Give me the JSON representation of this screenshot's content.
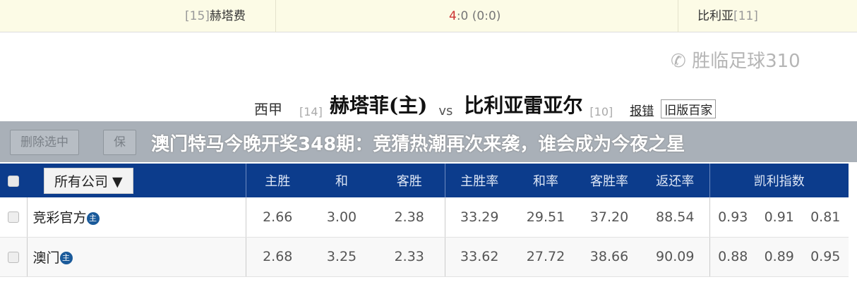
{
  "previous_match": {
    "home_rank": "[15]",
    "home": "赫塔费",
    "score_home": "4",
    "score_rest": ":0 (0:0)",
    "away": "比利亚",
    "away_rank": "[11]"
  },
  "match": {
    "league": "西甲",
    "home_rank": "[14]",
    "home": "赫塔菲(主)",
    "vs": "vs",
    "away": "比利亚雷亚尔",
    "away_rank": "[10]",
    "report_link": "报错",
    "old_version_button": "旧版百家"
  },
  "toolbar": {
    "delete_selected": "删除选中",
    "save": "保"
  },
  "banner": "澳门特马今晚开奖348期：竞猜热潮再次来袭，谁会成为今夜之星",
  "table": {
    "company_select": "所有公司 ▼",
    "headers": [
      "主胜",
      "和",
      "客胜",
      "主胜率",
      "和率",
      "客胜率",
      "返还率",
      "凯利指数"
    ],
    "rows": [
      {
        "company": "竞彩官方",
        "badge": "主",
        "odds": [
          "2.66",
          "3.00",
          "2.38"
        ],
        "rates": [
          "33.29",
          "29.51",
          "37.20",
          "88.54"
        ],
        "kelly": [
          "0.93",
          "0.91",
          "0.81"
        ]
      },
      {
        "company": "澳门",
        "badge": "主",
        "odds": [
          "2.68",
          "3.25",
          "2.33"
        ],
        "rates": [
          "33.62",
          "27.72",
          "38.66",
          "90.09"
        ],
        "kelly": [
          "0.88",
          "0.89",
          "0.95"
        ]
      }
    ]
  },
  "watermark": "胜临足球310",
  "colors": {
    "header": "#0c3c8c",
    "banner_bg": "#a9b0b8",
    "top_bg": "#fcfbe6"
  }
}
